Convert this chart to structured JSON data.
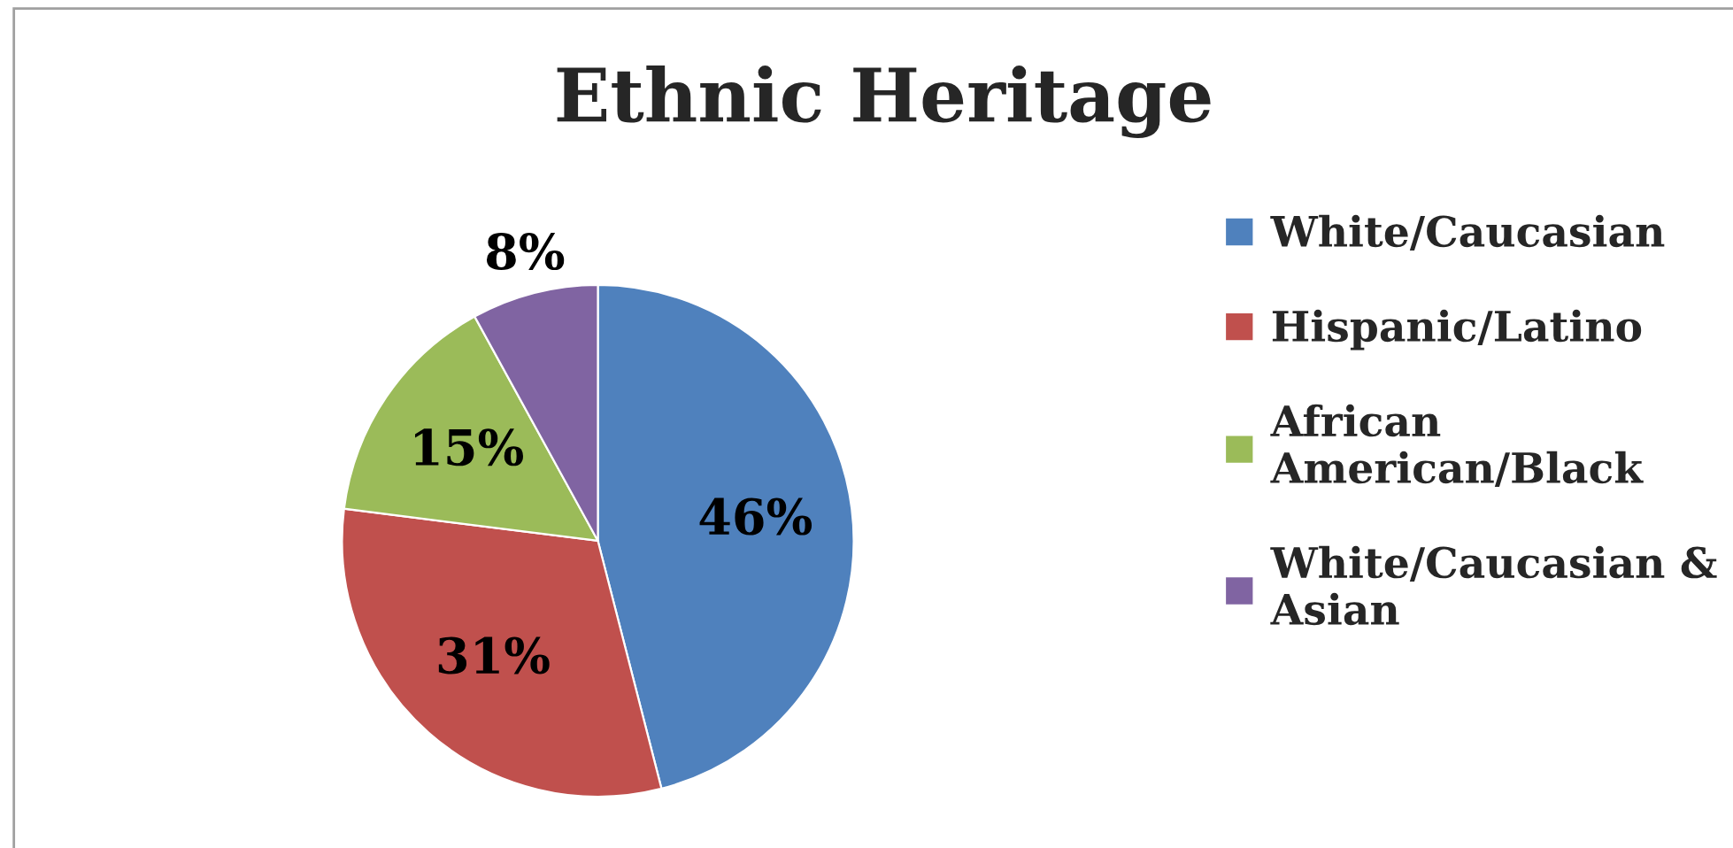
{
  "chart_data": {
    "type": "pie",
    "title": "Ethnic Heritage",
    "categories": [
      "White/Caucasian",
      "Hispanic/Latino",
      "African American/Black",
      "White/Caucasian & Asian"
    ],
    "values": [
      46,
      31,
      15,
      8
    ],
    "colors": [
      "#4f81bd",
      "#c0504d",
      "#9bbb59",
      "#8064a2"
    ],
    "value_labels": [
      "46%",
      "31%",
      "15%",
      "8%"
    ],
    "legend": "right"
  }
}
